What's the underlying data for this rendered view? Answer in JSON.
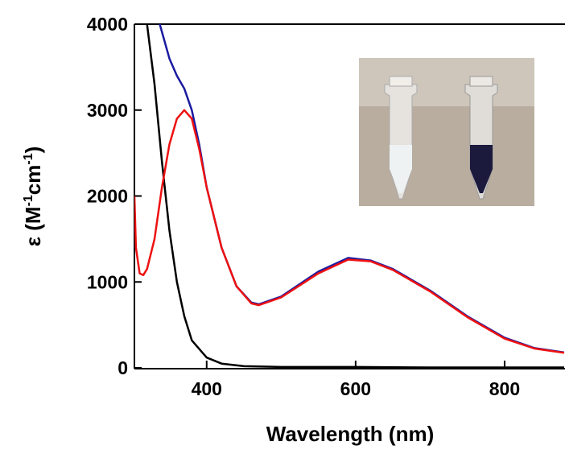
{
  "chart_data": {
    "type": "line",
    "xlabel": "Wavelength (nm)",
    "ylabel_parts": [
      {
        "text": "ε (M"
      },
      {
        "text": "-1",
        "sup": true
      },
      {
        "text": "cm"
      },
      {
        "text": "-1",
        "sup": true
      },
      {
        "text": ")"
      }
    ],
    "xlim": [
      303,
      880
    ],
    "ylim": [
      0,
      4000
    ],
    "xticks": [
      400,
      600,
      800
    ],
    "yticks": [
      0,
      1000,
      2000,
      3000,
      4000
    ],
    "series": [
      {
        "color": "#000000",
        "x": [
          320,
          330,
          340,
          350,
          360,
          370,
          380,
          400,
          420,
          450,
          500,
          600,
          700,
          800,
          880
        ],
        "values": [
          4000,
          3300,
          2400,
          1600,
          1000,
          600,
          320,
          120,
          50,
          20,
          10,
          10,
          5,
          5,
          5
        ]
      },
      {
        "color": "#1a1aa0",
        "x": [
          337,
          350,
          360,
          370,
          380,
          390,
          400,
          420,
          440,
          460,
          470,
          500,
          550,
          590,
          620,
          650,
          700,
          750,
          800,
          840,
          880
        ],
        "values": [
          4000,
          3600,
          3400,
          3250,
          3000,
          2600,
          2100,
          1400,
          950,
          760,
          740,
          830,
          1120,
          1280,
          1250,
          1150,
          900,
          600,
          350,
          230,
          180
        ]
      },
      {
        "color": "#ee1111",
        "x": [
          303,
          305,
          310,
          315,
          320,
          330,
          340,
          350,
          360,
          370,
          380,
          390,
          400,
          420,
          440,
          460,
          470,
          500,
          550,
          590,
          620,
          650,
          700,
          750,
          800,
          840,
          880
        ],
        "values": [
          2000,
          1400,
          1100,
          1080,
          1150,
          1500,
          2100,
          2600,
          2900,
          3000,
          2900,
          2550,
          2100,
          1400,
          950,
          750,
          730,
          820,
          1100,
          1260,
          1240,
          1140,
          890,
          590,
          340,
          225,
          175
        ]
      }
    ]
  }
}
